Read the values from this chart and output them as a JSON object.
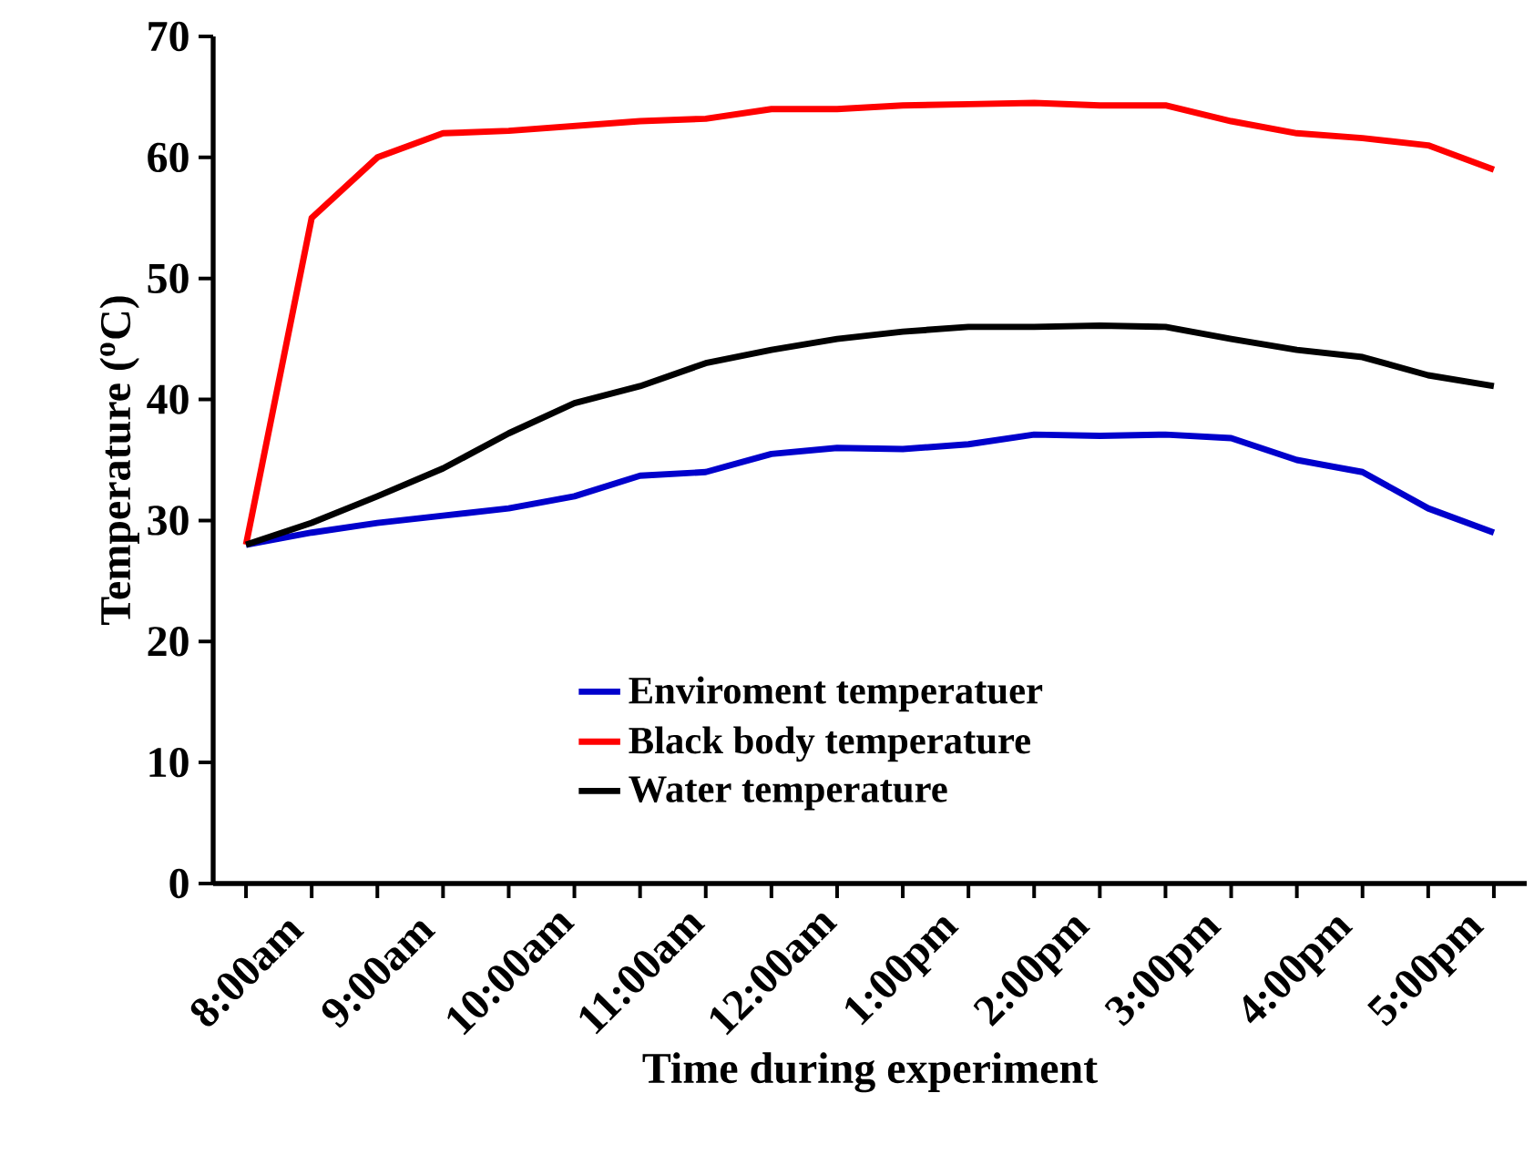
{
  "chart_data": {
    "type": "line",
    "xlabel": "Time during experiment",
    "ylabel": "Temperature ($^{o}$C)",
    "categories": [
      "8:00am",
      null,
      "9:00am",
      null,
      "10:00am",
      null,
      "11:00am",
      null,
      "12:00am",
      null,
      "1:00pm",
      null,
      "2:00pm",
      null,
      "3:00pm",
      null,
      "4:00pm",
      null,
      "5:00pm",
      null
    ],
    "series": [
      {
        "name": "Enviroment temperatuer",
        "color": "#0000cc",
        "values": [
          28,
          29,
          29.8,
          30.4,
          31,
          32,
          33.7,
          34,
          35.5,
          36,
          35.9,
          36.3,
          37.1,
          37,
          37.1,
          36.8,
          35,
          34,
          31,
          29
        ]
      },
      {
        "name": "Black body temperature",
        "color": "#ff0000",
        "values": [
          28,
          55,
          60,
          62,
          62.2,
          62.6,
          63,
          63.2,
          64,
          64,
          64.3,
          64.4,
          64.5,
          64.3,
          64.3,
          63,
          62,
          61.6,
          61,
          59
        ]
      },
      {
        "name": "Water temperature",
        "color": "#000000",
        "values": [
          28,
          29.8,
          32,
          34.3,
          37.2,
          39.7,
          41.1,
          43,
          44.1,
          45,
          45.6,
          46,
          46,
          46.1,
          46,
          45,
          44.1,
          43.5,
          42,
          41.1
        ]
      }
    ],
    "ylim": [
      0,
      70
    ],
    "yticks": [
      0,
      10,
      20,
      30,
      40,
      50,
      60,
      70
    ],
    "grid": false,
    "legend": "bottom right",
    "marker": "none",
    "line_style": "solid"
  }
}
